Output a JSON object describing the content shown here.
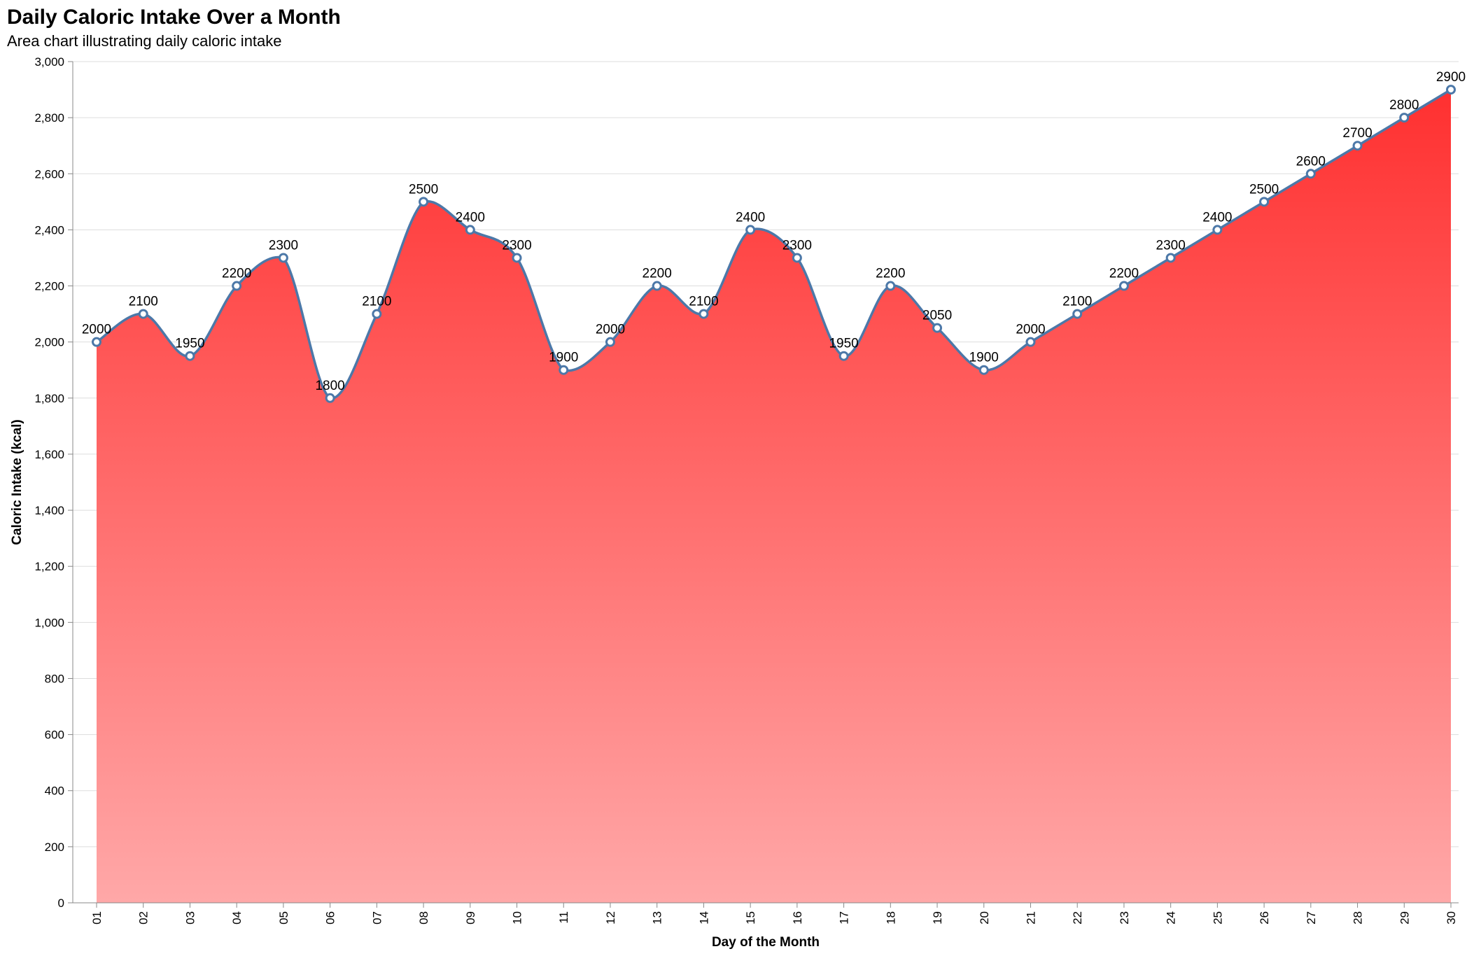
{
  "chart_data": {
    "type": "area",
    "title": "Daily Caloric Intake Over a Month",
    "subtitle": "Area chart illustrating daily caloric intake",
    "xlabel": "Day of the Month",
    "ylabel": "Caloric Intake (kcal)",
    "ylim": [
      0,
      3000
    ],
    "yticks": [
      0,
      200,
      400,
      600,
      800,
      1000,
      1200,
      1400,
      1600,
      1800,
      2000,
      2200,
      2400,
      2600,
      2800,
      3000
    ],
    "ytick_labels": [
      "0",
      "200",
      "400",
      "600",
      "800",
      "1,000",
      "1,200",
      "1,400",
      "1,600",
      "1,800",
      "2,000",
      "2,200",
      "2,400",
      "2,600",
      "2,800",
      "3,000"
    ],
    "categories": [
      "01",
      "02",
      "03",
      "04",
      "05",
      "06",
      "07",
      "08",
      "09",
      "10",
      "11",
      "12",
      "13",
      "14",
      "15",
      "16",
      "17",
      "18",
      "19",
      "20",
      "21",
      "22",
      "23",
      "24",
      "25",
      "26",
      "27",
      "28",
      "29",
      "30"
    ],
    "values": [
      2000,
      2100,
      1950,
      2200,
      2300,
      1800,
      2100,
      2500,
      2400,
      2300,
      1900,
      2000,
      2200,
      2100,
      2400,
      2300,
      1950,
      2200,
      2050,
      1900,
      2000,
      2100,
      2200,
      2300,
      2400,
      2500,
      2600,
      2700,
      2800,
      2900
    ],
    "grid": true,
    "colors": {
      "line": "#4c78a8",
      "area_top": "#ff3030",
      "area_bottom": "#ffa8a8",
      "grid": "#dddddd",
      "axis": "#888888"
    }
  }
}
